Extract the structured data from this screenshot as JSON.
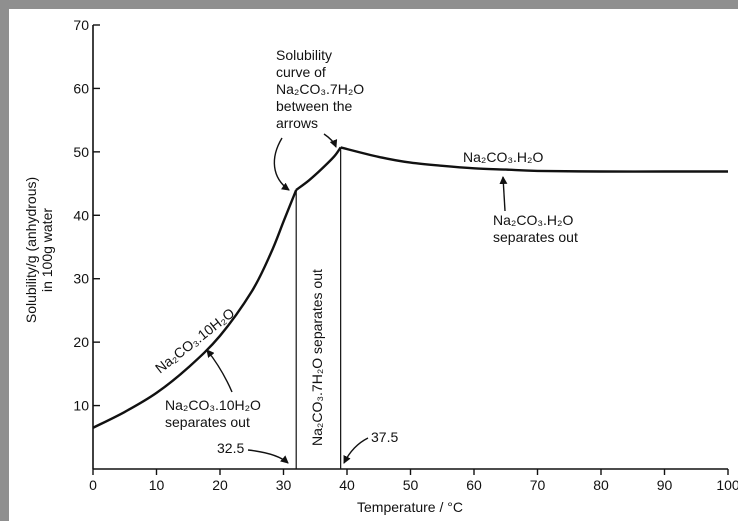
{
  "chart_data": {
    "type": "line",
    "xlabel": "Temperature / °C",
    "ylabel": [
      "Solubility/g (anhydrous)",
      "in 100g water"
    ],
    "xlim": [
      0,
      100
    ],
    "ylim": [
      0,
      70
    ],
    "x_ticks": [
      "0",
      "10",
      "20",
      "30",
      "40",
      "50",
      "60",
      "70",
      "80",
      "90",
      "100"
    ],
    "y_ticks": [
      "10",
      "20",
      "30",
      "40",
      "50",
      "60",
      "70"
    ],
    "grid": false,
    "legend": "none",
    "series": [
      {
        "name": "Na₂CO₃.10H₂O",
        "x": [
          0,
          5,
          10,
          15,
          20,
          25,
          28,
          30,
          32
        ],
        "y": [
          6.5,
          9,
          12,
          16,
          21,
          28,
          34,
          39,
          44
        ]
      },
      {
        "name": "Na₂CO₃.7H₂O",
        "x": [
          32,
          34,
          36,
          38,
          39
        ],
        "y": [
          44,
          45.5,
          47.3,
          49.3,
          50.7
        ]
      },
      {
        "name": "Na₂CO₃.H₂O",
        "x": [
          39,
          45,
          50,
          55,
          60,
          65,
          70,
          80,
          90,
          100
        ],
        "y": [
          50.7,
          49.2,
          48.3,
          47.8,
          47.4,
          47.2,
          47.0,
          46.9,
          46.9,
          46.9
        ]
      }
    ],
    "vertical_lines": [
      32,
      39
    ],
    "annotations": {
      "label_32_5": "32.5",
      "label_37_5": "37.5",
      "hydrate7_vertical": "Na₂CO₃.7H₂O separates out",
      "solubility_curve": [
        "Solubility",
        "curve of",
        "Na₂CO₃.7H₂O",
        "between the",
        "arrows"
      ],
      "hydrate10_curve_label": "Na₂CO₃.10H₂O",
      "hydrate10_note": [
        "Na₂CO₃.10H₂O",
        "separates out"
      ],
      "hydrate1_curve_label": "Na₂CO₃.H₂O",
      "hydrate1_note": [
        "Na₂CO₃.H₂O",
        "separates out"
      ]
    }
  }
}
